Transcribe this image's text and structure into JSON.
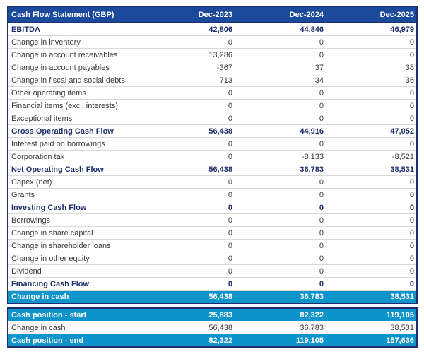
{
  "colors": {
    "header_background": "#1b4a9c",
    "border_navy": "#1e2f6d",
    "total_row_text": "#1e2f6d",
    "highlight_row_background": "#0e93ca",
    "highlight_row_text": "#ffffff",
    "body_text": "#3a3a3a",
    "row_separator": "#d9d9d9"
  },
  "statement": {
    "columns": [
      "Cash Flow Statement (GBP)",
      "Dec-2023",
      "Dec-2024",
      "Dec-2025"
    ],
    "rows": [
      {
        "label": "EBITDA",
        "values": [
          "42,806",
          "44,846",
          "46,979"
        ],
        "style": "total"
      },
      {
        "label": "Change in inventory",
        "values": [
          "0",
          "0",
          "0"
        ],
        "style": "normal"
      },
      {
        "label": "Change in account receivables",
        "values": [
          "13,286",
          "0",
          "0"
        ],
        "style": "normal"
      },
      {
        "label": "Change in account payables",
        "values": [
          "-367",
          "37",
          "38"
        ],
        "style": "normal"
      },
      {
        "label": "Change in fiscal and social debts",
        "values": [
          "713",
          "34",
          "36"
        ],
        "style": "normal"
      },
      {
        "label": "Other operating items",
        "values": [
          "0",
          "0",
          "0"
        ],
        "style": "normal"
      },
      {
        "label": "Financial items (excl. interests)",
        "values": [
          "0",
          "0",
          "0"
        ],
        "style": "normal"
      },
      {
        "label": "Exceptional items",
        "values": [
          "0",
          "0",
          "0"
        ],
        "style": "normal"
      },
      {
        "label": "Gross Operating Cash Flow",
        "values": [
          "56,438",
          "44,916",
          "47,052"
        ],
        "style": "total"
      },
      {
        "label": "Interest paid on borrowings",
        "values": [
          "0",
          "0",
          "0"
        ],
        "style": "normal"
      },
      {
        "label": "Corporation tax",
        "values": [
          "0",
          "-8,133",
          "-8,521"
        ],
        "style": "normal"
      },
      {
        "label": "Net Operating Cash Flow",
        "values": [
          "56,438",
          "36,783",
          "38,531"
        ],
        "style": "total"
      },
      {
        "label": "Capex (net)",
        "values": [
          "0",
          "0",
          "0"
        ],
        "style": "normal"
      },
      {
        "label": "Grants",
        "values": [
          "0",
          "0",
          "0"
        ],
        "style": "normal"
      },
      {
        "label": "Investing Cash Flow",
        "values": [
          "0",
          "0",
          "0"
        ],
        "style": "total"
      },
      {
        "label": "Borrowings",
        "values": [
          "0",
          "0",
          "0"
        ],
        "style": "normal"
      },
      {
        "label": "Change in share capital",
        "values": [
          "0",
          "0",
          "0"
        ],
        "style": "normal"
      },
      {
        "label": "Change in shareholder loans",
        "values": [
          "0",
          "0",
          "0"
        ],
        "style": "normal"
      },
      {
        "label": "Change in other equity",
        "values": [
          "0",
          "0",
          "0"
        ],
        "style": "normal"
      },
      {
        "label": "Dividend",
        "values": [
          "0",
          "0",
          "0"
        ],
        "style": "normal"
      },
      {
        "label": "Financing Cash Flow",
        "values": [
          "0",
          "0",
          "0"
        ],
        "style": "total"
      },
      {
        "label": "Change in cash",
        "values": [
          "56,438",
          "36,783",
          "38,531"
        ],
        "style": "highlight"
      }
    ]
  },
  "cash_position": {
    "rows": [
      {
        "label": "Cash position - start",
        "values": [
          "25,883",
          "82,322",
          "119,105"
        ],
        "style": "highlight"
      },
      {
        "label": "Change in cash",
        "values": [
          "56,438",
          "36,783",
          "38,531"
        ],
        "style": "normal"
      },
      {
        "label": "Cash position - end",
        "values": [
          "82,322",
          "119,105",
          "157,636"
        ],
        "style": "highlight"
      }
    ]
  }
}
